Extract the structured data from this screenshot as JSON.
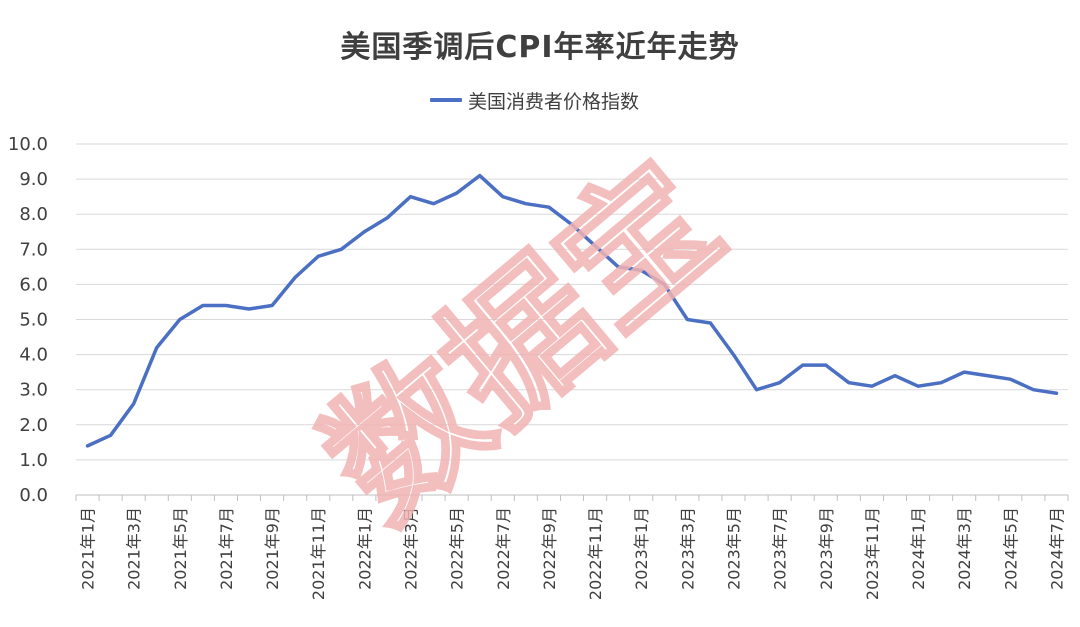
{
  "watermark": "数据宝",
  "chart_data": {
    "type": "line",
    "title": "美国季调后CPI年率近年走势",
    "xlabel": "",
    "ylabel": "",
    "ylim": [
      0,
      10
    ],
    "yticks": [
      "0.0",
      "1.0",
      "2.0",
      "3.0",
      "4.0",
      "5.0",
      "6.0",
      "7.0",
      "8.0",
      "9.0",
      "10.0"
    ],
    "grid": true,
    "legend_position": "top-center",
    "categories": [
      "2021年1月",
      "2021年2月",
      "2021年3月",
      "2021年4月",
      "2021年5月",
      "2021年6月",
      "2021年7月",
      "2021年8月",
      "2021年9月",
      "2021年10月",
      "2021年11月",
      "2021年12月",
      "2022年1月",
      "2022年2月",
      "2022年3月",
      "2022年4月",
      "2022年5月",
      "2022年6月",
      "2022年7月",
      "2022年8月",
      "2022年9月",
      "2022年10月",
      "2022年11月",
      "2022年12月",
      "2023年1月",
      "2023年2月",
      "2023年3月",
      "2023年4月",
      "2023年5月",
      "2023年6月",
      "2023年7月",
      "2023年8月",
      "2023年9月",
      "2023年10月",
      "2023年11月",
      "2023年12月",
      "2024年1月",
      "2024年2月",
      "2024年3月",
      "2024年4月",
      "2024年5月",
      "2024年6月",
      "2024年7月"
    ],
    "xtick_labels": [
      "2021年1月",
      "",
      "2021年3月",
      "",
      "2021年5月",
      "",
      "2021年7月",
      "",
      "2021年9月",
      "",
      "2021年11月",
      "",
      "2022年1月",
      "",
      "2022年3月",
      "",
      "2022年5月",
      "",
      "2022年7月",
      "",
      "2022年9月",
      "",
      "2022年11月",
      "",
      "2023年1月",
      "",
      "2023年3月",
      "",
      "2023年5月",
      "",
      "2023年7月",
      "",
      "2023年9月",
      "",
      "2023年11月",
      "",
      "2024年1月",
      "",
      "2024年3月",
      "",
      "2024年5月",
      "",
      "2024年7月"
    ],
    "series": [
      {
        "name": "美国消费者价格指数",
        "color": "#4a6fc3",
        "values": [
          1.4,
          1.7,
          2.6,
          4.2,
          5.0,
          5.4,
          5.4,
          5.3,
          5.4,
          6.2,
          6.8,
          7.0,
          7.5,
          7.9,
          8.5,
          8.3,
          8.6,
          9.1,
          8.5,
          8.3,
          8.2,
          7.7,
          7.1,
          6.5,
          6.4,
          6.0,
          5.0,
          4.9,
          4.0,
          3.0,
          3.2,
          3.7,
          3.7,
          3.2,
          3.1,
          3.4,
          3.1,
          3.2,
          3.5,
          3.4,
          3.3,
          3.0,
          2.9
        ]
      }
    ]
  }
}
